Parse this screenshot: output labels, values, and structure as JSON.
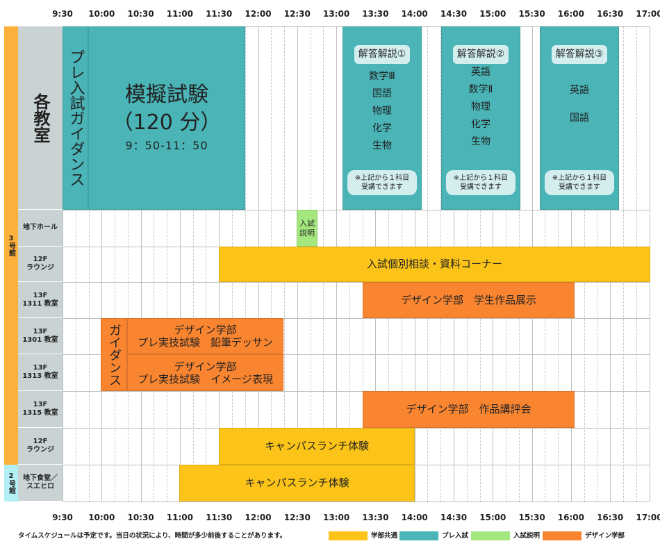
{
  "time_ticks": [
    "9:30",
    "10:00",
    "10:30",
    "11:00",
    "11:30",
    "12:00",
    "12:30",
    "13:00",
    "13:30",
    "14:00",
    "14:30",
    "15:00",
    "15:30",
    "16:00",
    "16:30",
    "17:00"
  ],
  "buildings": {
    "building3": "3号館",
    "building2": "2号館"
  },
  "rows": {
    "main_room": "各教室",
    "basement_hall": "地下ホール",
    "lounge_12f_a": {
      "line1": "12F",
      "line2": "ラウンジ"
    },
    "room_1311": {
      "line1": "13F",
      "line2": "1311 教室"
    },
    "room_1301": {
      "line1": "13F",
      "line2": "1301 教室"
    },
    "room_1313": {
      "line1": "13F",
      "line2": "1313 教室"
    },
    "room_1315": {
      "line1": "13F",
      "line2": "1315 教室"
    },
    "lounge_12f_b": {
      "line1": "12F",
      "line2": "ラウンジ"
    },
    "cafeteria": {
      "line1": "地下食堂／",
      "line2": "スエヒロ"
    }
  },
  "events": {
    "pre_guidance": "プレ入試ガイダンス",
    "mock_exam": {
      "title": "模擬試験",
      "duration": "（120 分）",
      "time": "9：50-11：50"
    },
    "solution1": {
      "title": "解答解説①",
      "subjects": [
        "数学Ⅲ",
        "国語",
        "物理",
        "化学",
        "生物"
      ],
      "note1": "※上記から１科目",
      "note2": "受講できます"
    },
    "solution2": {
      "title": "解答解説②",
      "subjects": [
        "英語",
        "数学Ⅱ",
        "物理",
        "化学",
        "生物"
      ],
      "note1": "※上記から１科目",
      "note2": "受講できます"
    },
    "solution3": {
      "title": "解答解説③",
      "subjects": [
        "英語",
        "国語"
      ],
      "note1": "※上記から１科目",
      "note2": "受講できます"
    },
    "exam_info": {
      "line1": "入試",
      "line2": "説明"
    },
    "consultation": "入試個別相談・資料コーナー",
    "student_works": "デザイン学部　学生作品展示",
    "design_guidance": "ガイダンス",
    "practical_drawing": {
      "line1": "デザイン学部",
      "line2": "プレ実技試験　鉛筆デッサン"
    },
    "practical_image": {
      "line1": "デザイン学部",
      "line2": "プレ実技試験　イメージ表現"
    },
    "critique": "デザイン学部　作品講評会",
    "lunch_12f": "キャンパスランチ体験",
    "lunch_cafeteria": "キャンパスランチ体験"
  },
  "footer": {
    "note": "タイムスケジュールは予定です。当日の状況により、時間が多少前後することがあります。",
    "legend": [
      {
        "label": "学部共通",
        "color": "#fcc419"
      },
      {
        "label": "プレ入試",
        "color": "#4ab4b7"
      },
      {
        "label": "入試説明",
        "color": "#a3e77e"
      },
      {
        "label": "デザイン学部",
        "color": "#f98530"
      }
    ]
  },
  "colors": {
    "building3_bar": "#fbb03b",
    "building2_bar": "#b3f0f5",
    "row_label_bg": "#c9d3d3"
  }
}
